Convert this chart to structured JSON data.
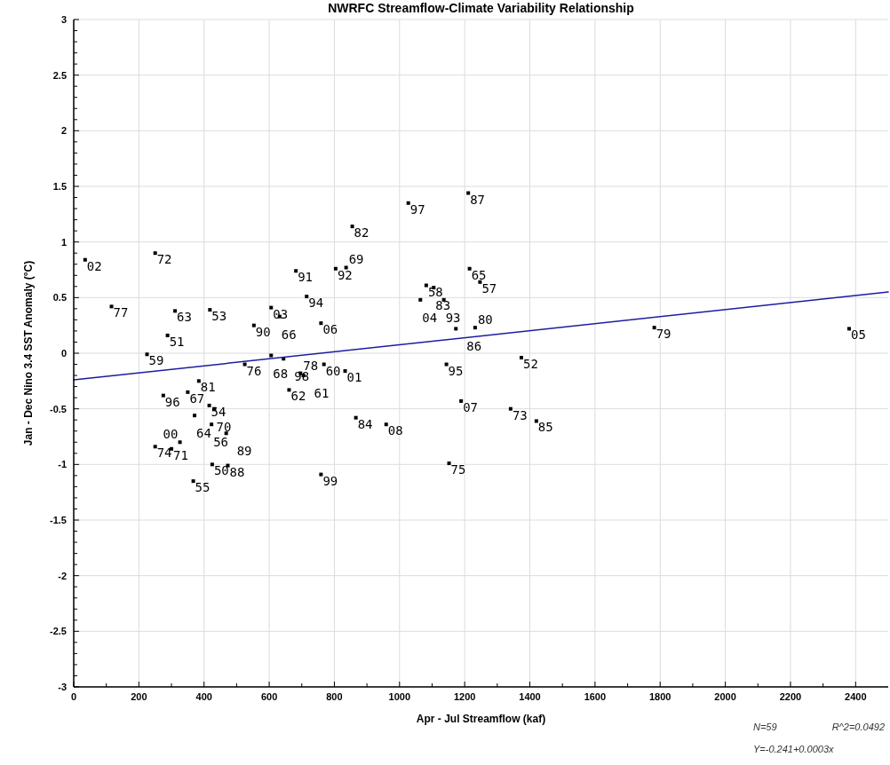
{
  "chart_data": {
    "type": "scatter",
    "title": "NWRFC Streamflow-Climate Variability Relationship",
    "xlabel": "Apr - Jul Streamflow (kaf)",
    "ylabel": "Jan - Dec Nino 3.4 SST Anomaly (°C)",
    "xlim": [
      0,
      2500
    ],
    "ylim": [
      -3,
      3
    ],
    "xticks": [
      0,
      {
        "value": 100,
        "label": null
      },
      200,
      {
        "value": 300,
        "label": null
      },
      400,
      {
        "value": 500,
        "label": null
      },
      600,
      {
        "value": 700,
        "label": null
      },
      800,
      {
        "value": 900,
        "label": null
      },
      1000,
      {
        "value": 1100,
        "label": null
      },
      1200,
      {
        "value": 1300,
        "label": null
      },
      1400,
      {
        "value": 1500,
        "label": null
      },
      1600,
      {
        "value": 1700,
        "label": null
      },
      1800,
      {
        "value": 1900,
        "label": null
      },
      2000,
      {
        "value": 2100,
        "label": null
      },
      2200,
      {
        "value": 2300,
        "label": null
      },
      2400
    ],
    "yticks": [
      -3,
      {
        "value": -2.9,
        "label": null
      },
      {
        "value": -2.8,
        "label": null
      },
      {
        "value": -2.7,
        "label": null
      },
      {
        "value": -2.6,
        "label": null
      },
      -2.5,
      {
        "value": -2.4,
        "label": null
      },
      {
        "value": -2.3,
        "label": null
      },
      {
        "value": -2.2,
        "label": null
      },
      {
        "value": -2.1,
        "label": null
      },
      -2,
      {
        "value": -1.9,
        "label": null
      },
      {
        "value": -1.8,
        "label": null
      },
      {
        "value": -1.7,
        "label": null
      },
      {
        "value": -1.6,
        "label": null
      },
      -1.5,
      {
        "value": -1.4,
        "label": null
      },
      {
        "value": -1.3,
        "label": null
      },
      {
        "value": -1.2,
        "label": null
      },
      {
        "value": -1.1,
        "label": null
      },
      -1,
      {
        "value": -0.9,
        "label": null
      },
      {
        "value": -0.8,
        "label": null
      },
      {
        "value": -0.7,
        "label": null
      },
      {
        "value": -0.6,
        "label": null
      },
      -0.5,
      {
        "value": -0.4,
        "label": null
      },
      {
        "value": -0.3,
        "label": null
      },
      {
        "value": -0.2,
        "label": null
      },
      {
        "value": -0.1,
        "label": null
      },
      0,
      {
        "value": 0.1,
        "label": null
      },
      {
        "value": 0.2,
        "label": null
      },
      {
        "value": 0.3,
        "label": null
      },
      {
        "value": 0.4,
        "label": null
      },
      0.5,
      {
        "value": 0.6,
        "label": null
      },
      {
        "value": 0.7,
        "label": null
      },
      {
        "value": 0.8,
        "label": null
      },
      {
        "value": 0.9,
        "label": null
      },
      1,
      {
        "value": 1.1,
        "label": null
      },
      {
        "value": 1.2,
        "label": null
      },
      {
        "value": 1.3,
        "label": null
      },
      {
        "value": 1.4,
        "label": null
      },
      1.5,
      {
        "value": 1.6,
        "label": null
      },
      {
        "value": 1.7,
        "label": null
      },
      {
        "value": 1.8,
        "label": null
      },
      {
        "value": 1.9,
        "label": null
      },
      2,
      {
        "value": 2.1,
        "label": null
      },
      {
        "value": 2.2,
        "label": null
      },
      {
        "value": 2.3,
        "label": null
      },
      {
        "value": 2.4,
        "label": null
      },
      2.5,
      {
        "value": 2.6,
        "label": null
      },
      {
        "value": 2.7,
        "label": null
      },
      {
        "value": 2.8,
        "label": null
      },
      {
        "value": 2.9,
        "label": null
      },
      3
    ],
    "grid": true,
    "series": [
      {
        "type": "scatter",
        "marker": "square",
        "color": "#000000",
        "x": [
          35,
          250,
          116,
          311,
          418,
          288,
          225,
          553,
          606,
          632,
          759,
          715,
          682,
          525,
          606,
          644,
          768,
          833,
          661,
          696,
          705,
          384,
          275,
          350,
          416,
          432,
          371,
          423,
          468,
          250,
          300,
          326,
          425,
          473,
          367,
          759,
          855,
          1027,
          1211,
          804,
          836,
          1215,
          1247,
          1082,
          1105,
          1064,
          1136,
          1173,
          1232,
          1144,
          1374,
          1189,
          1341,
          1420,
          866,
          959,
          1152,
          1782,
          2380
        ],
        "values": [
          0.84,
          0.9,
          0.42,
          0.38,
          0.39,
          0.16,
          -0.01,
          0.25,
          0.41,
          0.33,
          0.27,
          0.51,
          0.74,
          -0.1,
          -0.02,
          -0.05,
          -0.1,
          -0.16,
          -0.33,
          -0.18,
          -0.2,
          -0.25,
          -0.38,
          -0.35,
          -0.47,
          -0.5,
          -0.56,
          -0.64,
          -0.72,
          -0.84,
          -0.86,
          -0.8,
          -1.0,
          -1.01,
          -1.15,
          -1.09,
          1.14,
          1.35,
          1.44,
          0.76,
          0.77,
          0.76,
          0.64,
          0.61,
          0.59,
          0.48,
          0.48,
          0.22,
          0.23,
          -0.1,
          -0.04,
          -0.43,
          -0.5,
          -0.61,
          -0.58,
          -0.64,
          -0.99,
          0.23,
          0.22
        ]
      },
      {
        "type": "line",
        "color": "#1c1ca0",
        "x": [
          0,
          2500
        ],
        "values": [
          -0.24,
          0.55
        ]
      }
    ],
    "annotations": [
      {
        "text": "02",
        "x": 35,
        "y": 0.84
      },
      {
        "text": "72",
        "x": 250,
        "y": 0.9
      },
      {
        "text": "77",
        "x": 116,
        "y": 0.42
      },
      {
        "text": "63",
        "x": 311,
        "y": 0.38
      },
      {
        "text": "53",
        "x": 418,
        "y": 0.39
      },
      {
        "text": "51",
        "x": 288,
        "y": 0.16
      },
      {
        "text": "59",
        "x": 225,
        "y": -0.01
      },
      {
        "text": "90",
        "x": 553,
        "y": 0.25
      },
      {
        "text": "03",
        "x": 606,
        "y": 0.41
      },
      {
        "text": "66",
        "x": 632,
        "y": 0.33
      },
      {
        "text": "06",
        "x": 759,
        "y": 0.27
      },
      {
        "text": "94",
        "x": 715,
        "y": 0.51
      },
      {
        "text": "91",
        "x": 682,
        "y": 0.74
      },
      {
        "text": "76",
        "x": 525,
        "y": -0.1
      },
      {
        "text": "68",
        "x": 606,
        "y": -0.02
      },
      {
        "text": "98",
        "x": 644,
        "y": -0.05
      },
      {
        "text": "60",
        "x": 768,
        "y": -0.1
      },
      {
        "text": "01",
        "x": 833,
        "y": -0.16
      },
      {
        "text": "62",
        "x": 661,
        "y": -0.33
      },
      {
        "text": "78",
        "x": 696,
        "y": -0.18
      },
      {
        "text": "61",
        "x": 705,
        "y": -0.2
      },
      {
        "text": "81",
        "x": 384,
        "y": -0.25
      },
      {
        "text": "96",
        "x": 275,
        "y": -0.38
      },
      {
        "text": "67",
        "x": 350,
        "y": -0.35
      },
      {
        "text": "54",
        "x": 416,
        "y": -0.47
      },
      {
        "text": "70",
        "x": 432,
        "y": -0.5
      },
      {
        "text": "64",
        "x": 371,
        "y": -0.56
      },
      {
        "text": "56",
        "x": 423,
        "y": -0.64
      },
      {
        "text": "89",
        "x": 468,
        "y": -0.72
      },
      {
        "text": "74",
        "x": 250,
        "y": -0.84
      },
      {
        "text": "71",
        "x": 300,
        "y": -0.86
      },
      {
        "text": "00",
        "x": 326,
        "y": -0.8
      },
      {
        "text": "50",
        "x": 425,
        "y": -1.0
      },
      {
        "text": "88",
        "x": 473,
        "y": -1.01
      },
      {
        "text": "55",
        "x": 367,
        "y": -1.15
      },
      {
        "text": "99",
        "x": 759,
        "y": -1.09
      },
      {
        "text": "82",
        "x": 855,
        "y": 1.14
      },
      {
        "text": "97",
        "x": 1027,
        "y": 1.35
      },
      {
        "text": "87",
        "x": 1211,
        "y": 1.44
      },
      {
        "text": "92",
        "x": 804,
        "y": 0.76
      },
      {
        "text": "69",
        "x": 836,
        "y": 0.77
      },
      {
        "text": "65",
        "x": 1215,
        "y": 0.76
      },
      {
        "text": "57",
        "x": 1247,
        "y": 0.64
      },
      {
        "text": "58",
        "x": 1082,
        "y": 0.61
      },
      {
        "text": "83",
        "x": 1105,
        "y": 0.59
      },
      {
        "text": "04",
        "x": 1064,
        "y": 0.48
      },
      {
        "text": "93",
        "x": 1136,
        "y": 0.48
      },
      {
        "text": "86",
        "x": 1173,
        "y": 0.22
      },
      {
        "text": "80",
        "x": 1232,
        "y": 0.23
      },
      {
        "text": "95",
        "x": 1144,
        "y": -0.1
      },
      {
        "text": "52",
        "x": 1374,
        "y": -0.04
      },
      {
        "text": "07",
        "x": 1189,
        "y": -0.43
      },
      {
        "text": "73",
        "x": 1341,
        "y": -0.5
      },
      {
        "text": "85",
        "x": 1420,
        "y": -0.61
      },
      {
        "text": "84",
        "x": 866,
        "y": -0.58
      },
      {
        "text": "08",
        "x": 959,
        "y": -0.64
      },
      {
        "text": "75",
        "x": 1152,
        "y": -0.99
      },
      {
        "text": "79",
        "x": 1782,
        "y": 0.23
      },
      {
        "text": "05",
        "x": 2380,
        "y": 0.22
      },
      "N=59",
      "R^2=0.0492",
      "Y=-0.241+0.0003x"
    ]
  }
}
